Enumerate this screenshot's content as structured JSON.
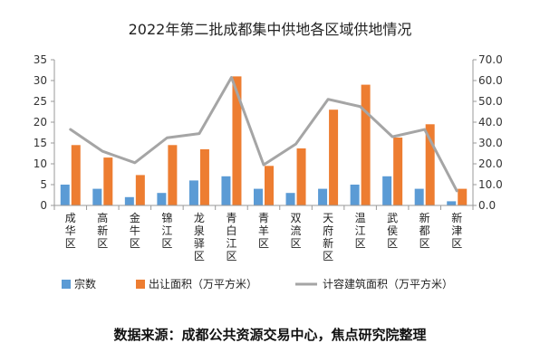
{
  "chart_data": {
    "type": "bar",
    "title": "2022年第二批成都集中供地各区域供地情况",
    "categories": [
      "成华区",
      "高新区",
      "金牛区",
      "锦江区",
      "龙泉驿区",
      "青白江区",
      "青羊区",
      "双流区",
      "天府新区",
      "温江区",
      "武侯区",
      "新都区",
      "新津区"
    ],
    "series": [
      {
        "name": "宗数",
        "type": "bar",
        "axis": "left",
        "color": "#5b9bd5",
        "values": [
          5,
          4,
          2,
          3,
          6,
          7,
          4,
          3,
          4,
          5,
          7,
          4,
          1
        ]
      },
      {
        "name": "出让面积（万平方米）",
        "type": "bar",
        "axis": "left",
        "color": "#ed7d31",
        "values": [
          14.5,
          11.5,
          7.3,
          14.5,
          13.5,
          31,
          9.5,
          13.7,
          23,
          29,
          16.3,
          19.5,
          4
        ]
      },
      {
        "name": "计容建筑面积（万平方米）",
        "type": "line",
        "axis": "right",
        "color": "#a5a5a5",
        "values": [
          36.5,
          26,
          20.5,
          32.5,
          34.5,
          61.5,
          19.5,
          29.5,
          51,
          47.5,
          33,
          36.5,
          7
        ]
      }
    ],
    "y_left": {
      "min": 0,
      "max": 35,
      "step": 5,
      "tick_labels": [
        "0",
        "5",
        "10",
        "15",
        "20",
        "25",
        "30",
        "35"
      ]
    },
    "y_right": {
      "min": 0,
      "max": 70,
      "step": 10,
      "tick_labels": [
        "0.0",
        "10.0",
        "20.0",
        "30.0",
        "40.0",
        "50.0",
        "60.0",
        "70.0"
      ]
    },
    "grid": false,
    "legend": "bottom"
  },
  "source": "数据来源：成都公共资源交易中心，焦点研究院整理"
}
